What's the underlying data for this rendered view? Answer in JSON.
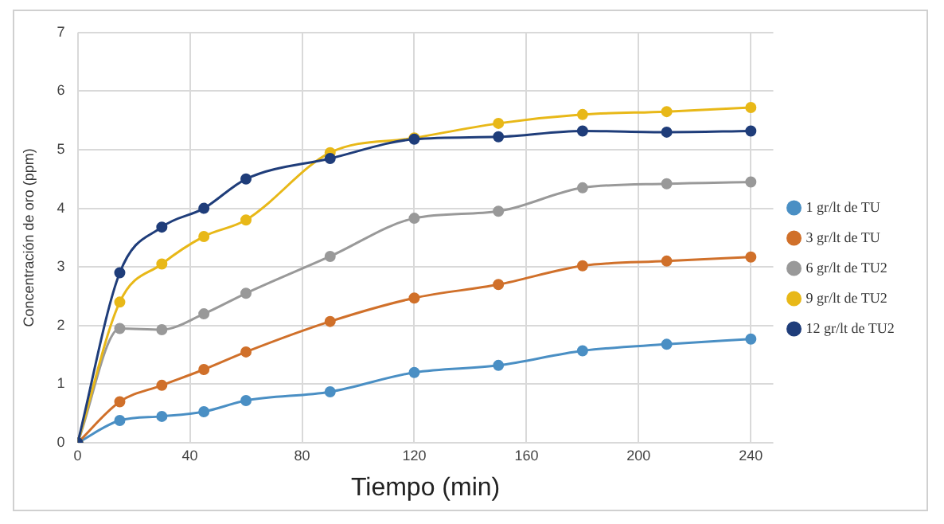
{
  "chart_data": {
    "type": "line",
    "xlabel": "Tiempo (min)",
    "ylabel": "Concentración de oro (ppm)",
    "x": [
      0,
      15,
      30,
      45,
      60,
      90,
      120,
      150,
      180,
      210,
      240
    ],
    "xlim": [
      0,
      248
    ],
    "xticks": [
      0,
      40,
      80,
      120,
      160,
      200,
      240
    ],
    "ylim": [
      0,
      7
    ],
    "yticks": [
      0,
      1,
      2,
      3,
      4,
      5,
      6,
      7
    ],
    "grid": true,
    "legend": "right",
    "marker": "circle",
    "line_style": "solid",
    "series": [
      {
        "name": "1 gr/lt de TU",
        "color": "#4a8fc4",
        "values": [
          0,
          0.38,
          0.45,
          0.53,
          0.72,
          0.87,
          1.2,
          1.32,
          1.57,
          1.68,
          1.77
        ]
      },
      {
        "name": "3 gr/lt de TU",
        "color": "#d0702a",
        "values": [
          0,
          0.7,
          0.98,
          1.25,
          1.55,
          2.07,
          2.47,
          2.7,
          3.02,
          3.1,
          3.17
        ]
      },
      {
        "name": "6 gr/lt de TU2",
        "color": "#999999",
        "values": [
          0,
          1.95,
          1.93,
          2.2,
          2.55,
          3.18,
          3.83,
          3.95,
          4.35,
          4.42,
          4.45
        ]
      },
      {
        "name": "9 gr/lt de TU2",
        "color": "#e8b818",
        "values": [
          0,
          2.4,
          3.05,
          3.52,
          3.8,
          4.95,
          5.2,
          5.45,
          5.6,
          5.65,
          5.72
        ]
      },
      {
        "name": "12 gr/lt de TU2",
        "color": "#1f3d7a",
        "values": [
          0,
          2.9,
          3.68,
          4.0,
          4.5,
          4.85,
          5.18,
          5.22,
          5.32,
          5.3,
          5.32
        ]
      }
    ]
  }
}
